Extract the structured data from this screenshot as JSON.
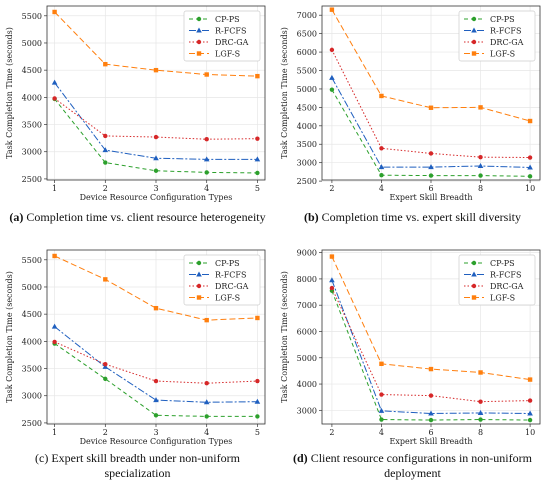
{
  "chart_data": [
    {
      "type": "line",
      "caption_label": "(a)",
      "caption_text": "Completion time vs. client resource heterogeneity",
      "xlabel": "Device Resource Configuration Types",
      "ylabel": "Task Completion Time (seconds)",
      "x": [
        1,
        2,
        3,
        4,
        5
      ],
      "xticks": [
        1,
        2,
        3,
        4,
        5
      ],
      "xlim": [
        0.85,
        5.15
      ],
      "ylim": [
        2480,
        5680
      ],
      "yticks": [
        2500,
        3000,
        3500,
        4000,
        4500,
        5000,
        5500
      ],
      "legend_position": "top-right",
      "series": [
        {
          "name": "CP-PS",
          "color": "#2ca02c",
          "dash": "4,3",
          "marker": "circle",
          "values": [
            3970,
            2800,
            2650,
            2620,
            2610
          ]
        },
        {
          "name": "R-FCFS",
          "color": "#1f5fbf",
          "dash": "7,2,2,2",
          "marker": "triangle",
          "values": [
            4270,
            3030,
            2880,
            2860,
            2860
          ]
        },
        {
          "name": "DRC-GA",
          "color": "#d62728",
          "dash": "1.5,2",
          "marker": "circle",
          "values": [
            3980,
            3290,
            3270,
            3230,
            3240
          ]
        },
        {
          "name": "LGF-S",
          "color": "#ff7f0e",
          "dash": "6,3",
          "marker": "square",
          "values": [
            5570,
            4610,
            4500,
            4420,
            4390
          ]
        }
      ]
    },
    {
      "type": "line",
      "caption_label": "(b)",
      "caption_text": "Completion time vs. expert skill diversity",
      "xlabel": "Expert Skill Breadth",
      "ylabel": "Task Completion Time (seconds)",
      "x": [
        2,
        4,
        6,
        8,
        10
      ],
      "xticks": [
        2,
        4,
        6,
        8,
        10
      ],
      "xlim": [
        1.6,
        10.4
      ],
      "ylim": [
        2530,
        7250
      ],
      "yticks": [
        2500,
        3000,
        3500,
        4000,
        4500,
        5000,
        5500,
        6000,
        6500,
        7000
      ],
      "legend_position": "top-right",
      "series": [
        {
          "name": "CP-PS",
          "color": "#2ca02c",
          "dash": "4,3",
          "marker": "circle",
          "values": [
            4980,
            2660,
            2650,
            2650,
            2630
          ]
        },
        {
          "name": "R-FCFS",
          "color": "#1f5fbf",
          "dash": "7,2,2,2",
          "marker": "triangle",
          "values": [
            5300,
            2880,
            2880,
            2910,
            2870
          ]
        },
        {
          "name": "DRC-GA",
          "color": "#d62728",
          "dash": "1.5,2",
          "marker": "circle",
          "values": [
            6060,
            3390,
            3250,
            3150,
            3140
          ]
        },
        {
          "name": "LGF-S",
          "color": "#ff7f0e",
          "dash": "6,3",
          "marker": "square",
          "values": [
            7150,
            4810,
            4490,
            4500,
            4130
          ]
        }
      ]
    },
    {
      "type": "line",
      "caption_label": "(c)",
      "caption_text": "Expert skill breadth under non-uniform specialization",
      "xlabel": "Device Resource Configuration Types",
      "ylabel": "Task Completion Time (seconds)",
      "x": [
        1,
        2,
        3,
        4,
        5
      ],
      "xticks": [
        1,
        2,
        3,
        4,
        5
      ],
      "xlim": [
        0.85,
        5.15
      ],
      "ylim": [
        2480,
        5680
      ],
      "yticks": [
        2500,
        3000,
        3500,
        4000,
        4500,
        5000,
        5500
      ],
      "legend_position": "top-right",
      "series": [
        {
          "name": "CP-PS",
          "color": "#2ca02c",
          "dash": "4,3",
          "marker": "circle",
          "values": [
            3960,
            3310,
            2640,
            2620,
            2620
          ]
        },
        {
          "name": "R-FCFS",
          "color": "#1f5fbf",
          "dash": "7,2,2,2",
          "marker": "triangle",
          "values": [
            4270,
            3530,
            2920,
            2880,
            2890
          ]
        },
        {
          "name": "DRC-GA",
          "color": "#d62728",
          "dash": "1.5,2",
          "marker": "circle",
          "values": [
            3990,
            3580,
            3270,
            3230,
            3270
          ]
        },
        {
          "name": "LGF-S",
          "color": "#ff7f0e",
          "dash": "6,3",
          "marker": "square",
          "values": [
            5570,
            5140,
            4610,
            4390,
            4430
          ]
        }
      ]
    },
    {
      "type": "line",
      "caption_label": "(d)",
      "caption_text": "Client resource configurations in non-uniform deployment",
      "xlabel": "Expert Skill Breadth",
      "ylabel": "Task Completion Time (seconds)",
      "x": [
        2,
        4,
        6,
        8,
        10
      ],
      "xticks": [
        2,
        4,
        6,
        8,
        10
      ],
      "xlim": [
        1.6,
        10.4
      ],
      "ylim": [
        2480,
        9100
      ],
      "yticks": [
        3000,
        4000,
        5000,
        6000,
        7000,
        8000,
        9000
      ],
      "legend_position": "top-right",
      "series": [
        {
          "name": "CP-PS",
          "color": "#2ca02c",
          "dash": "4,3",
          "marker": "circle",
          "values": [
            7550,
            2650,
            2630,
            2650,
            2630
          ]
        },
        {
          "name": "R-FCFS",
          "color": "#1f5fbf",
          "dash": "7,2,2,2",
          "marker": "triangle",
          "values": [
            7950,
            2980,
            2880,
            2900,
            2880
          ]
        },
        {
          "name": "DRC-GA",
          "color": "#d62728",
          "dash": "1.5,2",
          "marker": "circle",
          "values": [
            7650,
            3600,
            3560,
            3330,
            3370
          ]
        },
        {
          "name": "LGF-S",
          "color": "#ff7f0e",
          "dash": "6,3",
          "marker": "square",
          "values": [
            8850,
            4770,
            4570,
            4440,
            4170
          ]
        }
      ]
    }
  ]
}
